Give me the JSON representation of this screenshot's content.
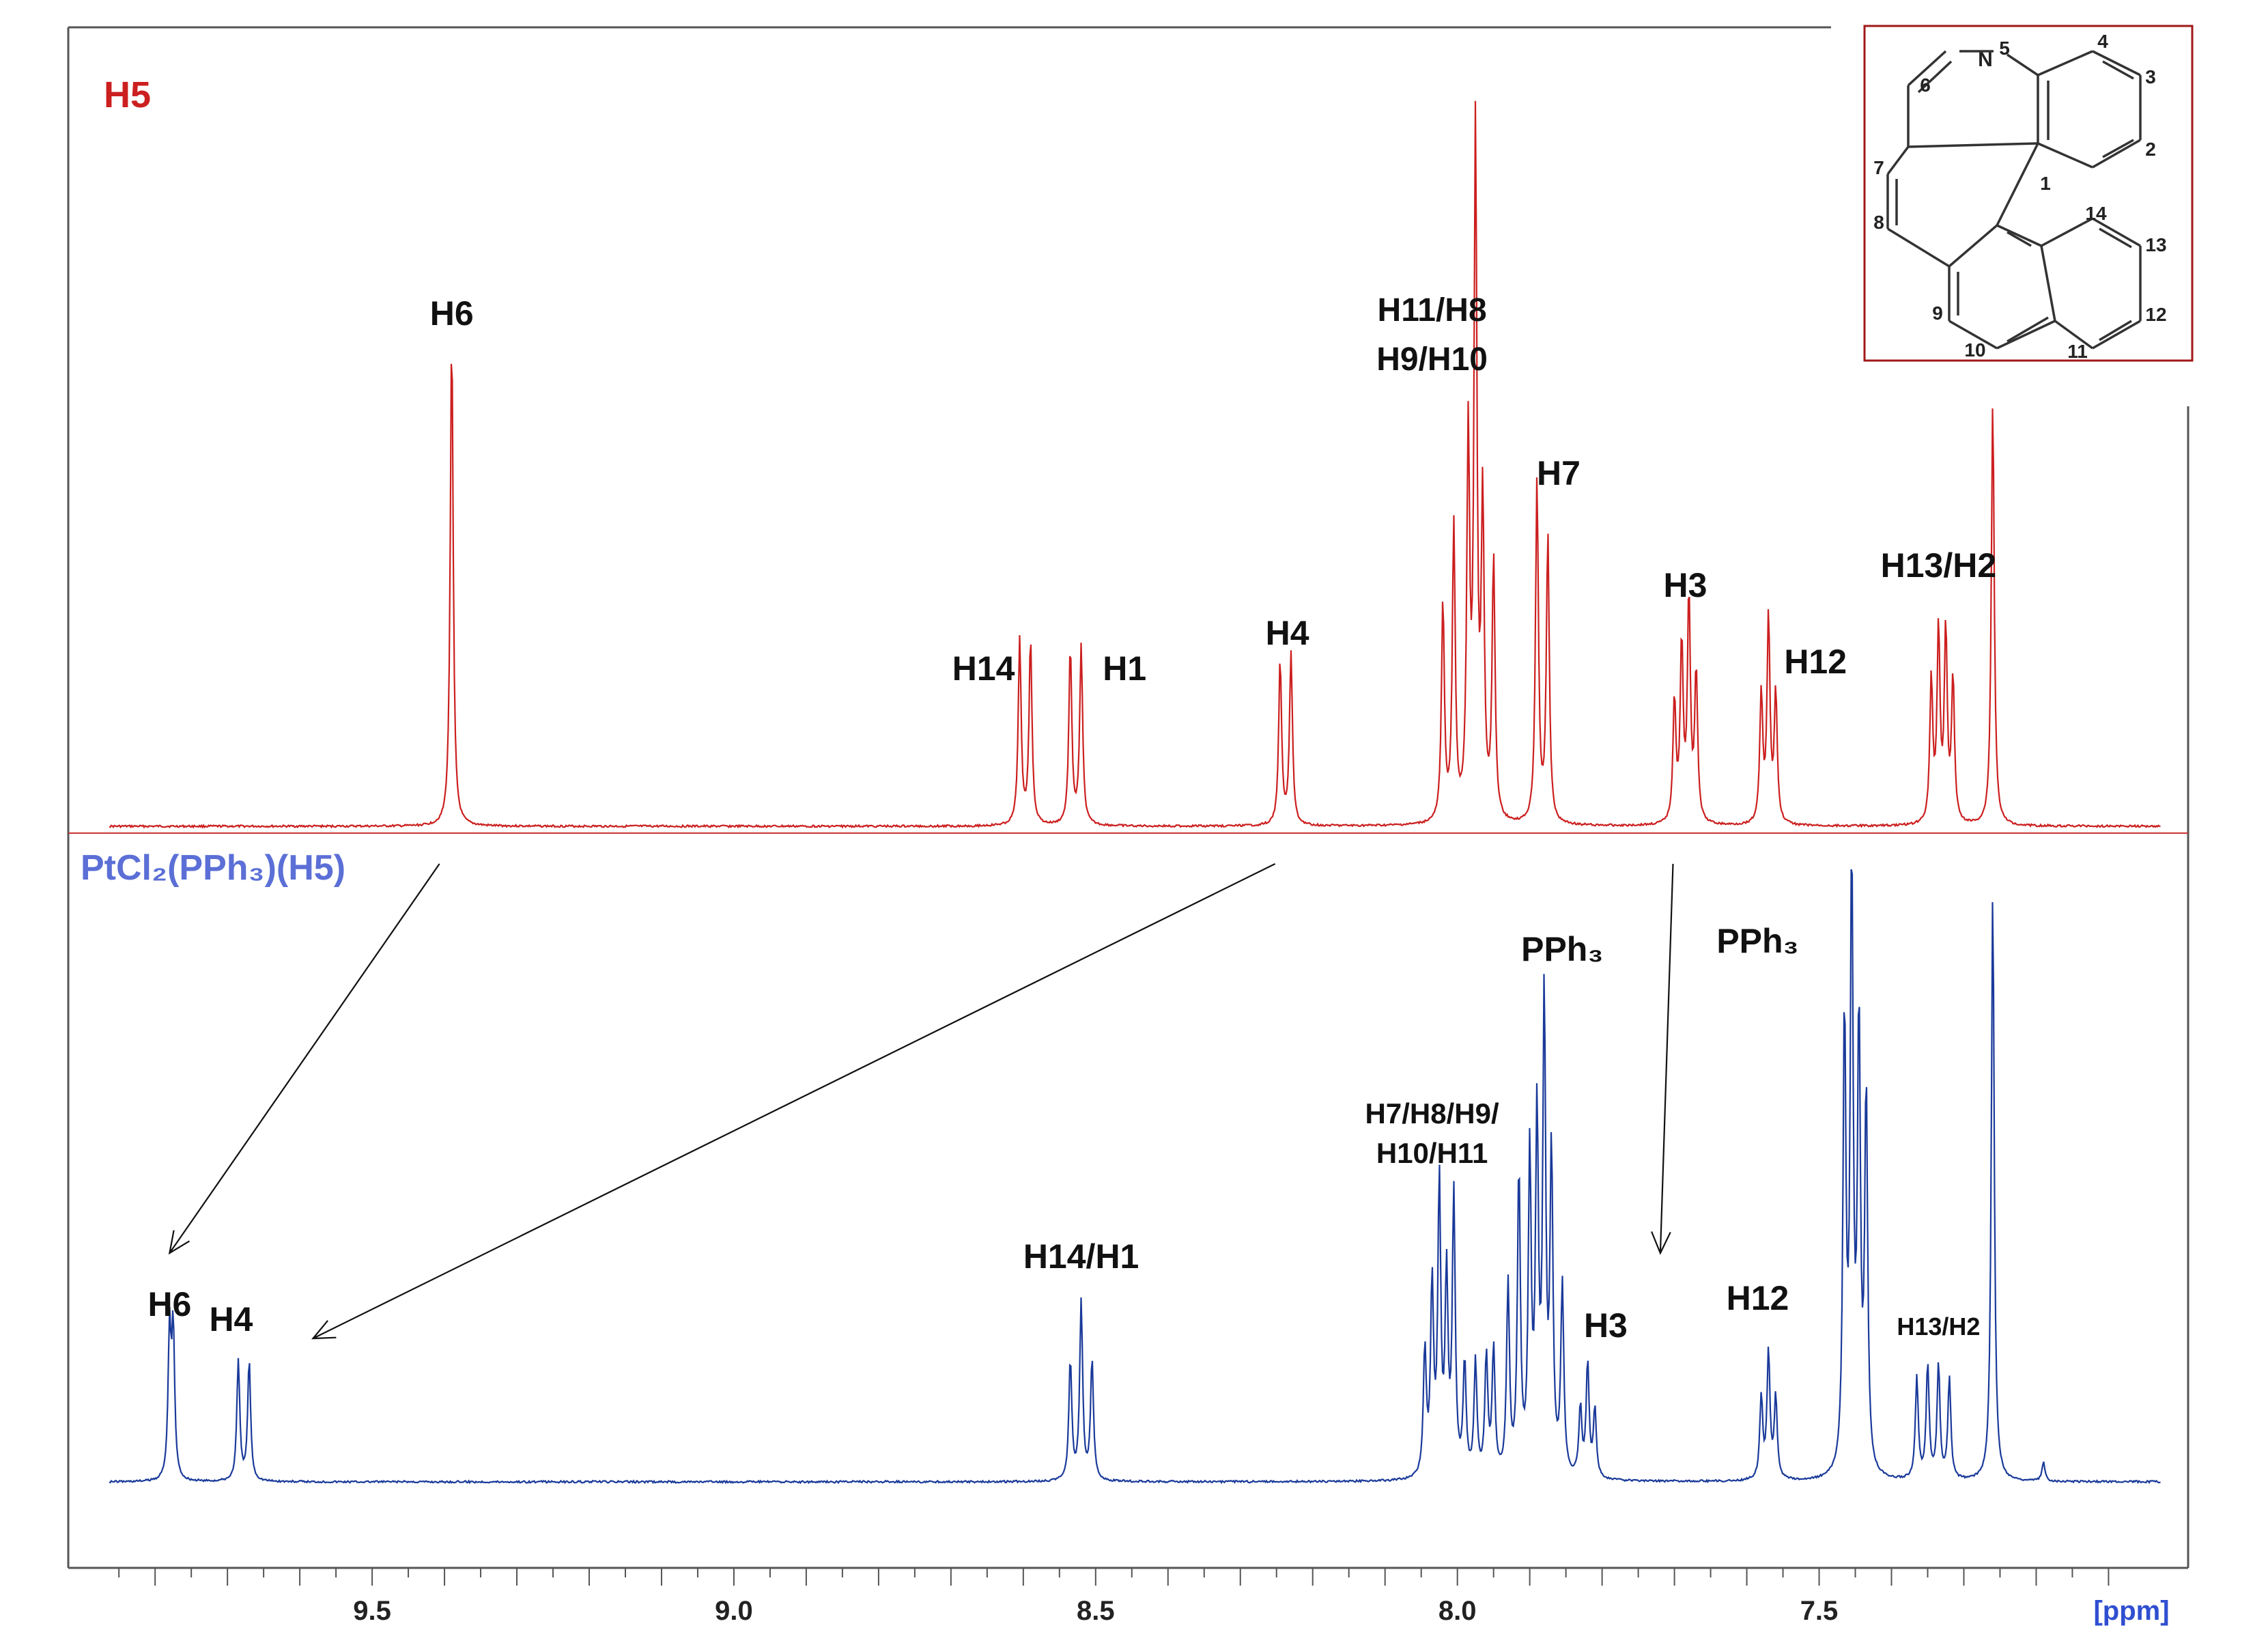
{
  "chart_data": {
    "type": "line",
    "title": "",
    "xlabel": "[ppm]",
    "ylabel": "",
    "x_reversed": true,
    "xlim": [
      9.92,
      6.99
    ],
    "x_ticks": [
      {
        "value": 9.5,
        "label": "9.5"
      },
      {
        "value": 9.0,
        "label": "9.0"
      },
      {
        "value": 8.5,
        "label": "8.5"
      },
      {
        "value": 8.0,
        "label": "8.0"
      },
      {
        "value": 7.5,
        "label": "7.5"
      }
    ],
    "grid": false,
    "series": [
      {
        "name": "H5",
        "color": "#cc1f1f",
        "peaks": [
          {
            "shift": 9.39,
            "height": 0.72
          },
          {
            "shift": 8.605,
            "height": 0.27
          },
          {
            "shift": 8.59,
            "height": 0.27
          },
          {
            "shift": 8.535,
            "height": 0.26
          },
          {
            "shift": 8.52,
            "height": 0.26
          },
          {
            "shift": 8.245,
            "height": 0.24
          },
          {
            "shift": 8.23,
            "height": 0.25
          },
          {
            "shift": 8.02,
            "height": 0.32
          },
          {
            "shift": 8.005,
            "height": 0.43
          },
          {
            "shift": 7.985,
            "height": 0.55
          },
          {
            "shift": 7.975,
            "height": 1.0
          },
          {
            "shift": 7.965,
            "height": 0.45
          },
          {
            "shift": 7.95,
            "height": 0.38
          },
          {
            "shift": 7.89,
            "height": 0.5
          },
          {
            "shift": 7.875,
            "height": 0.42
          },
          {
            "shift": 7.7,
            "height": 0.18
          },
          {
            "shift": 7.69,
            "height": 0.26
          },
          {
            "shift": 7.68,
            "height": 0.33
          },
          {
            "shift": 7.67,
            "height": 0.22
          },
          {
            "shift": 7.58,
            "height": 0.19
          },
          {
            "shift": 7.57,
            "height": 0.3
          },
          {
            "shift": 7.56,
            "height": 0.19
          },
          {
            "shift": 7.345,
            "height": 0.21
          },
          {
            "shift": 7.335,
            "height": 0.28
          },
          {
            "shift": 7.325,
            "height": 0.28
          },
          {
            "shift": 7.315,
            "height": 0.21
          },
          {
            "shift": 7.26,
            "height": 0.62
          }
        ],
        "labels": [
          {
            "text": "H6",
            "shift": 9.39
          },
          {
            "text": "H14",
            "shift": 8.655
          },
          {
            "text": "H1",
            "shift": 8.46
          },
          {
            "text": "H4",
            "shift": 8.235
          },
          {
            "text": "H11/H8",
            "shift": 8.035
          },
          {
            "text": "H9/H10",
            "shift": 8.035
          },
          {
            "text": "H7",
            "shift": 7.86
          },
          {
            "text": "H3",
            "shift": 7.685
          },
          {
            "text": "H12",
            "shift": 7.505
          },
          {
            "text": "H13/H2",
            "shift": 7.335
          }
        ]
      },
      {
        "name": "PtCl₂(PPh₃)(H5)",
        "color": "#1a3a9a",
        "peaks": [
          {
            "shift": 9.78,
            "height": 0.23
          },
          {
            "shift": 9.775,
            "height": 0.23
          },
          {
            "shift": 9.685,
            "height": 0.19
          },
          {
            "shift": 9.67,
            "height": 0.19
          },
          {
            "shift": 8.535,
            "height": 0.19
          },
          {
            "shift": 8.52,
            "height": 0.28
          },
          {
            "shift": 8.505,
            "height": 0.19
          },
          {
            "shift": 8.045,
            "height": 0.2
          },
          {
            "shift": 8.035,
            "height": 0.3
          },
          {
            "shift": 8.025,
            "height": 0.46
          },
          {
            "shift": 8.015,
            "height": 0.31
          },
          {
            "shift": 8.005,
            "height": 0.44
          },
          {
            "shift": 7.99,
            "height": 0.18
          },
          {
            "shift": 7.975,
            "height": 0.18
          },
          {
            "shift": 7.96,
            "height": 0.19
          },
          {
            "shift": 7.95,
            "height": 0.2
          },
          {
            "shift": 7.93,
            "height": 0.3
          },
          {
            "shift": 7.915,
            "height": 0.48
          },
          {
            "shift": 7.9,
            "height": 0.5
          },
          {
            "shift": 7.89,
            "height": 0.55
          },
          {
            "shift": 7.88,
            "height": 0.74
          },
          {
            "shift": 7.87,
            "height": 0.5
          },
          {
            "shift": 7.855,
            "height": 0.3
          },
          {
            "shift": 7.83,
            "height": 0.11
          },
          {
            "shift": 7.82,
            "height": 0.18
          },
          {
            "shift": 7.81,
            "height": 0.11
          },
          {
            "shift": 7.58,
            "height": 0.13
          },
          {
            "shift": 7.57,
            "height": 0.2
          },
          {
            "shift": 7.56,
            "height": 0.13
          },
          {
            "shift": 7.465,
            "height": 0.72
          },
          {
            "shift": 7.455,
            "height": 0.95
          },
          {
            "shift": 7.445,
            "height": 0.7
          },
          {
            "shift": 7.435,
            "height": 0.6
          },
          {
            "shift": 7.365,
            "height": 0.16
          },
          {
            "shift": 7.35,
            "height": 0.18
          },
          {
            "shift": 7.335,
            "height": 0.18
          },
          {
            "shift": 7.32,
            "height": 0.16
          },
          {
            "shift": 7.26,
            "height": 0.93
          },
          {
            "shift": 7.19,
            "height": 0.03
          }
        ],
        "labels": [
          {
            "text": "H6",
            "shift": 9.78
          },
          {
            "text": "H4",
            "shift": 9.695
          },
          {
            "text": "H14/H1",
            "shift": 8.52
          },
          {
            "text": "H7/H8/H9/",
            "shift": 8.035
          },
          {
            "text": "H10/H11",
            "shift": 8.035
          },
          {
            "text": "PPh₃",
            "shift": 7.855
          },
          {
            "text": "H3",
            "shift": 7.795
          },
          {
            "text": "PPh₃",
            "shift": 7.585
          },
          {
            "text": "H12",
            "shift": 7.585
          },
          {
            "text": "H13/H2",
            "shift": 7.335
          }
        ]
      }
    ],
    "annotations": {
      "arrows": [
        {
          "from_series": "H5",
          "from": 9.39,
          "to_series": "PtCl₂(PPh₃)(H5)",
          "to": 9.78
        },
        {
          "from_series": "H5",
          "from": 8.235,
          "to_series": "PtCl₂(PPh₃)(H5)",
          "to": 9.695
        },
        {
          "from_series": "H5",
          "from": 7.685,
          "to_series": "PtCl₂(PPh₃)(H5)",
          "to": 7.795
        }
      ],
      "structure": {
        "atom_numbers": [
          "1",
          "2",
          "3",
          "4",
          "5",
          "6",
          "7",
          "8",
          "9",
          "10",
          "11",
          "12",
          "13",
          "14"
        ],
        "heteroatom": "N"
      }
    }
  },
  "colors": {
    "h5": "#cc1f1f",
    "complex": "#1a3a9a",
    "complex_label": "#5b6fd6",
    "axis": "#555555"
  }
}
